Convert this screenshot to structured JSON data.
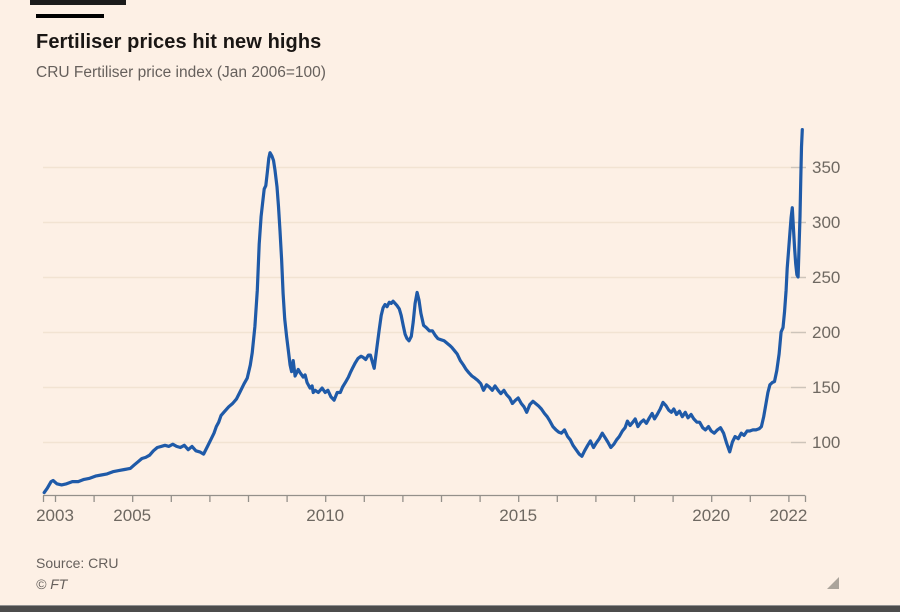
{
  "header": {
    "title": "Fertiliser prices hit new highs",
    "subtitle": "CRU Fertiliser price index (Jan 2006=100)"
  },
  "footer": {
    "source": "Source: CRU",
    "copyright": "© FT"
  },
  "colors": {
    "background": "#fdf0e5",
    "line": "#1f5aa8",
    "title_text": "#1a1614",
    "muted_text": "#66605c",
    "axis": "#94908a",
    "axis_label": "#6e6861",
    "gridline": "#f2e3d2",
    "grid_tick": "#cdc4ba"
  },
  "chart_data": {
    "type": "line",
    "title": "Fertiliser prices hit new highs",
    "subtitle": "CRU Fertiliser price index (Jan 2006=100)",
    "source": "Source: CRU",
    "xlabel": "",
    "ylabel": "",
    "grid": "horizontal-only",
    "y_axis_side": "right",
    "xlim": [
      2002.7,
      2022.45
    ],
    "ylim": [
      50,
      395
    ],
    "x_tick_labels": [
      "2003",
      "2005",
      "2010",
      "2015",
      "2020",
      "2022"
    ],
    "x_tick_years": [
      2003,
      2005,
      2010,
      2015,
      2020,
      2022
    ],
    "x_minor_tick_years": [
      2003,
      2004,
      2005,
      2006,
      2007,
      2008,
      2009,
      2010,
      2011,
      2012,
      2013,
      2014,
      2015,
      2016,
      2017,
      2018,
      2019,
      2020,
      2021,
      2022
    ],
    "y_ticks": [
      100,
      150,
      200,
      250,
      300,
      350
    ],
    "series": [
      {
        "name": "CRU Fertiliser price index",
        "color": "#1f5aa8",
        "points": [
          [
            2002.72,
            54
          ],
          [
            2002.8,
            58
          ],
          [
            2002.9,
            64
          ],
          [
            2002.95,
            65
          ],
          [
            2003.05,
            62
          ],
          [
            2003.17,
            61
          ],
          [
            2003.3,
            62
          ],
          [
            2003.45,
            64
          ],
          [
            2003.6,
            64
          ],
          [
            2003.75,
            66
          ],
          [
            2003.9,
            67
          ],
          [
            2004.05,
            69
          ],
          [
            2004.2,
            70
          ],
          [
            2004.35,
            71
          ],
          [
            2004.5,
            73
          ],
          [
            2004.65,
            74
          ],
          [
            2004.8,
            75
          ],
          [
            2004.95,
            76
          ],
          [
            2005.05,
            79
          ],
          [
            2005.15,
            82
          ],
          [
            2005.25,
            85
          ],
          [
            2005.35,
            86
          ],
          [
            2005.45,
            88
          ],
          [
            2005.55,
            92
          ],
          [
            2005.65,
            95
          ],
          [
            2005.75,
            96
          ],
          [
            2005.85,
            97
          ],
          [
            2005.95,
            96
          ],
          [
            2006.05,
            98
          ],
          [
            2006.15,
            96
          ],
          [
            2006.25,
            95
          ],
          [
            2006.35,
            97
          ],
          [
            2006.45,
            93
          ],
          [
            2006.55,
            96
          ],
          [
            2006.65,
            92
          ],
          [
            2006.75,
            91
          ],
          [
            2006.85,
            89
          ],
          [
            2006.95,
            96
          ],
          [
            2007.05,
            103
          ],
          [
            2007.12,
            108
          ],
          [
            2007.18,
            114
          ],
          [
            2007.24,
            118
          ],
          [
            2007.3,
            124
          ],
          [
            2007.4,
            128
          ],
          [
            2007.5,
            132
          ],
          [
            2007.6,
            135
          ],
          [
            2007.7,
            139
          ],
          [
            2007.8,
            146
          ],
          [
            2007.9,
            153
          ],
          [
            2007.98,
            158
          ],
          [
            2008.06,
            170
          ],
          [
            2008.11,
            181
          ],
          [
            2008.18,
            205
          ],
          [
            2008.24,
            238
          ],
          [
            2008.29,
            280
          ],
          [
            2008.34,
            305
          ],
          [
            2008.38,
            318
          ],
          [
            2008.42,
            330
          ],
          [
            2008.46,
            333
          ],
          [
            2008.5,
            345
          ],
          [
            2008.54,
            358
          ],
          [
            2008.57,
            363
          ],
          [
            2008.62,
            360
          ],
          [
            2008.66,
            356
          ],
          [
            2008.7,
            347
          ],
          [
            2008.75,
            332
          ],
          [
            2008.79,
            314
          ],
          [
            2008.83,
            292
          ],
          [
            2008.87,
            266
          ],
          [
            2008.91,
            235
          ],
          [
            2008.95,
            212
          ],
          [
            2009.0,
            196
          ],
          [
            2009.04,
            185
          ],
          [
            2009.09,
            170
          ],
          [
            2009.13,
            164
          ],
          [
            2009.17,
            174
          ],
          [
            2009.22,
            160
          ],
          [
            2009.3,
            166
          ],
          [
            2009.35,
            163
          ],
          [
            2009.43,
            159
          ],
          [
            2009.48,
            161
          ],
          [
            2009.53,
            154
          ],
          [
            2009.61,
            149
          ],
          [
            2009.66,
            151
          ],
          [
            2009.69,
            145
          ],
          [
            2009.74,
            147
          ],
          [
            2009.82,
            145
          ],
          [
            2009.92,
            149
          ],
          [
            2010.0,
            145
          ],
          [
            2010.07,
            147
          ],
          [
            2010.15,
            141
          ],
          [
            2010.23,
            138
          ],
          [
            2010.31,
            145
          ],
          [
            2010.39,
            145
          ],
          [
            2010.45,
            150
          ],
          [
            2010.52,
            154
          ],
          [
            2010.6,
            159
          ],
          [
            2010.65,
            163
          ],
          [
            2010.72,
            168
          ],
          [
            2010.78,
            172
          ],
          [
            2010.85,
            176
          ],
          [
            2010.93,
            178
          ],
          [
            2010.98,
            177
          ],
          [
            2011.05,
            175
          ],
          [
            2011.12,
            179
          ],
          [
            2011.17,
            179
          ],
          [
            2011.22,
            173
          ],
          [
            2011.27,
            167
          ],
          [
            2011.34,
            186
          ],
          [
            2011.4,
            202
          ],
          [
            2011.45,
            215
          ],
          [
            2011.5,
            222
          ],
          [
            2011.55,
            225
          ],
          [
            2011.6,
            223
          ],
          [
            2011.66,
            227
          ],
          [
            2011.71,
            226
          ],
          [
            2011.76,
            228
          ],
          [
            2011.81,
            226
          ],
          [
            2011.86,
            224
          ],
          [
            2011.92,
            221
          ],
          [
            2011.97,
            215
          ],
          [
            2012.02,
            206
          ],
          [
            2012.07,
            198
          ],
          [
            2012.12,
            194
          ],
          [
            2012.17,
            192
          ],
          [
            2012.23,
            196
          ],
          [
            2012.28,
            209
          ],
          [
            2012.33,
            226
          ],
          [
            2012.38,
            236
          ],
          [
            2012.43,
            229
          ],
          [
            2012.48,
            217
          ],
          [
            2012.55,
            206
          ],
          [
            2012.62,
            204
          ],
          [
            2012.7,
            201
          ],
          [
            2012.78,
            201
          ],
          [
            2012.85,
            197
          ],
          [
            2012.92,
            194
          ],
          [
            2013.0,
            193
          ],
          [
            2013.08,
            192
          ],
          [
            2013.15,
            190
          ],
          [
            2013.22,
            188
          ],
          [
            2013.28,
            186
          ],
          [
            2013.35,
            183
          ],
          [
            2013.42,
            180
          ],
          [
            2013.5,
            174
          ],
          [
            2013.58,
            170
          ],
          [
            2013.65,
            166
          ],
          [
            2013.72,
            163
          ],
          [
            2013.8,
            160
          ],
          [
            2013.88,
            158
          ],
          [
            2013.95,
            156
          ],
          [
            2014.03,
            153
          ],
          [
            2014.1,
            147
          ],
          [
            2014.18,
            152
          ],
          [
            2014.25,
            150
          ],
          [
            2014.33,
            147
          ],
          [
            2014.4,
            151
          ],
          [
            2014.48,
            147
          ],
          [
            2014.55,
            144
          ],
          [
            2014.63,
            147
          ],
          [
            2014.7,
            143
          ],
          [
            2014.78,
            140
          ],
          [
            2014.85,
            135
          ],
          [
            2014.93,
            138
          ],
          [
            2015.0,
            140
          ],
          [
            2015.08,
            135
          ],
          [
            2015.15,
            132
          ],
          [
            2015.22,
            127
          ],
          [
            2015.3,
            134
          ],
          [
            2015.38,
            137
          ],
          [
            2015.45,
            135
          ],
          [
            2015.52,
            133
          ],
          [
            2015.6,
            130
          ],
          [
            2015.68,
            126
          ],
          [
            2015.75,
            123
          ],
          [
            2015.82,
            119
          ],
          [
            2015.9,
            114
          ],
          [
            2015.98,
            111
          ],
          [
            2016.05,
            109
          ],
          [
            2016.12,
            108
          ],
          [
            2016.2,
            111
          ],
          [
            2016.28,
            105
          ],
          [
            2016.35,
            102
          ],
          [
            2016.42,
            97
          ],
          [
            2016.5,
            93
          ],
          [
            2016.58,
            89
          ],
          [
            2016.65,
            87
          ],
          [
            2016.72,
            92
          ],
          [
            2016.8,
            97
          ],
          [
            2016.87,
            101
          ],
          [
            2016.95,
            95
          ],
          [
            2017.02,
            99
          ],
          [
            2017.1,
            103
          ],
          [
            2017.18,
            108
          ],
          [
            2017.25,
            104
          ],
          [
            2017.32,
            100
          ],
          [
            2017.4,
            95
          ],
          [
            2017.48,
            98
          ],
          [
            2017.55,
            102
          ],
          [
            2017.62,
            105
          ],
          [
            2017.7,
            110
          ],
          [
            2017.77,
            113
          ],
          [
            2017.83,
            119
          ],
          [
            2017.9,
            115
          ],
          [
            2017.97,
            118
          ],
          [
            2018.03,
            121
          ],
          [
            2018.1,
            114
          ],
          [
            2018.18,
            118
          ],
          [
            2018.25,
            120
          ],
          [
            2018.32,
            117
          ],
          [
            2018.4,
            122
          ],
          [
            2018.47,
            126
          ],
          [
            2018.53,
            121
          ],
          [
            2018.6,
            125
          ],
          [
            2018.68,
            130
          ],
          [
            2018.75,
            136
          ],
          [
            2018.83,
            133
          ],
          [
            2018.9,
            129
          ],
          [
            2018.97,
            127
          ],
          [
            2019.03,
            130
          ],
          [
            2019.1,
            125
          ],
          [
            2019.18,
            128
          ],
          [
            2019.25,
            123
          ],
          [
            2019.33,
            127
          ],
          [
            2019.4,
            122
          ],
          [
            2019.48,
            125
          ],
          [
            2019.55,
            121
          ],
          [
            2019.63,
            118
          ],
          [
            2019.7,
            118
          ],
          [
            2019.78,
            113
          ],
          [
            2019.85,
            111
          ],
          [
            2019.93,
            114
          ],
          [
            2020.0,
            110
          ],
          [
            2020.08,
            108
          ],
          [
            2020.16,
            111
          ],
          [
            2020.24,
            113
          ],
          [
            2020.32,
            108
          ],
          [
            2020.4,
            99
          ],
          [
            2020.48,
            91
          ],
          [
            2020.55,
            100
          ],
          [
            2020.62,
            105
          ],
          [
            2020.7,
            103
          ],
          [
            2020.78,
            108
          ],
          [
            2020.85,
            106
          ],
          [
            2020.93,
            110
          ],
          [
            2021.0,
            110
          ],
          [
            2021.08,
            111
          ],
          [
            2021.16,
            111
          ],
          [
            2021.24,
            112
          ],
          [
            2021.3,
            114
          ],
          [
            2021.36,
            123
          ],
          [
            2021.42,
            135
          ],
          [
            2021.47,
            145
          ],
          [
            2021.52,
            152
          ],
          [
            2021.58,
            154
          ],
          [
            2021.64,
            155
          ],
          [
            2021.7,
            165
          ],
          [
            2021.76,
            180
          ],
          [
            2021.81,
            200
          ],
          [
            2021.86,
            204
          ],
          [
            2021.9,
            218
          ],
          [
            2021.94,
            238
          ],
          [
            2021.97,
            258
          ],
          [
            2022.0,
            272
          ],
          [
            2022.04,
            290
          ],
          [
            2022.07,
            304
          ],
          [
            2022.1,
            313
          ],
          [
            2022.13,
            295
          ],
          [
            2022.16,
            276
          ],
          [
            2022.19,
            262
          ],
          [
            2022.22,
            252
          ],
          [
            2022.25,
            250
          ],
          [
            2022.27,
            270
          ],
          [
            2022.3,
            305
          ],
          [
            2022.32,
            340
          ],
          [
            2022.34,
            368
          ],
          [
            2022.36,
            384
          ]
        ]
      }
    ]
  }
}
